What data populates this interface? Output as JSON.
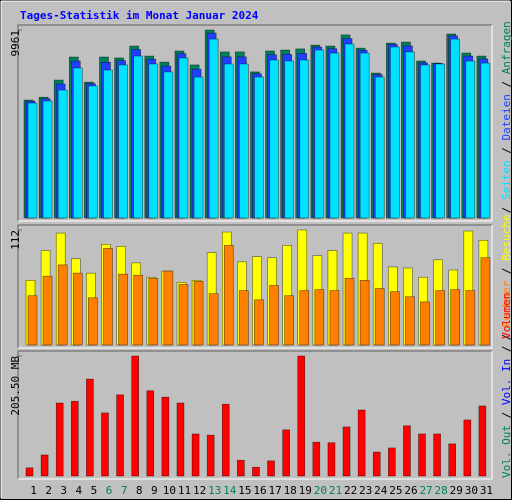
{
  "title": "Tages-Statistik im Monat Januar 2024",
  "legend_separator": " / ",
  "chart_data": [
    {
      "type": "bar",
      "ylim": [
        0,
        9961
      ],
      "yticks": [
        9961
      ],
      "series": [
        {
          "name": "Anfragen",
          "color": "#00805c",
          "values": [
            6250,
            6400,
            7310,
            8530,
            7200,
            8530,
            8480,
            9110,
            8580,
            8260,
            8850,
            8110,
            9961,
            8800,
            8800,
            7740,
            8850,
            8900,
            8960,
            9160,
            9110,
            9700,
            9000,
            7680,
            9270,
            9320,
            8320,
            8210,
            9750,
            8740,
            8580
          ]
        },
        {
          "name": "Dateien",
          "color": "#2040ff",
          "values": [
            6190,
            6320,
            7100,
            8320,
            7120,
            8250,
            8340,
            8930,
            8410,
            8050,
            8710,
            7890,
            9800,
            8540,
            8540,
            7640,
            8650,
            8670,
            8720,
            9060,
            8970,
            9510,
            8890,
            7600,
            9200,
            9120,
            8220,
            8190,
            9650,
            8580,
            8430
          ]
        },
        {
          "name": "Seiten",
          "color": "#00e0ff",
          "values": [
            6090,
            6200,
            6780,
            7950,
            7000,
            7840,
            8110,
            8580,
            8160,
            7740,
            8480,
            7470,
            9480,
            8160,
            8160,
            7470,
            8370,
            8320,
            8370,
            8900,
            8740,
            9220,
            8740,
            7470,
            9060,
            8800,
            8110,
            8160,
            9480,
            8320,
            8210
          ]
        }
      ]
    },
    {
      "type": "bar",
      "ylim": [
        0,
        112
      ],
      "yticks": [
        112
      ],
      "series": [
        {
          "name": "Besuche",
          "color": "#ffff00",
          "values": [
            63,
            92,
            109,
            84,
            70,
            98,
            96,
            80,
            66,
            72,
            61,
            63,
            90,
            110,
            81,
            86,
            85,
            97,
            112,
            87,
            92,
            109,
            109,
            99,
            76,
            75,
            66,
            83,
            73,
            111,
            102
          ]
        },
        {
          "name": "Rechner",
          "color": "#ff8000",
          "values": [
            48,
            67,
            78,
            70,
            46,
            94,
            69,
            68,
            65,
            72,
            59,
            62,
            50,
            97,
            53,
            44,
            58,
            48,
            53,
            54,
            53,
            65,
            63,
            55,
            52,
            47,
            42,
            53,
            54,
            53,
            85
          ]
        }
      ]
    },
    {
      "type": "bar",
      "ylim": [
        0,
        205.5
      ],
      "yticks": [
        {
          "value": 205.5,
          "label": "205.50 MB"
        }
      ],
      "categories": [
        "1",
        "2",
        "3",
        "4",
        "5",
        "6",
        "7",
        "8",
        "9",
        "10",
        "11",
        "12",
        "13",
        "14",
        "15",
        "16",
        "17",
        "18",
        "19",
        "20",
        "21",
        "22",
        "23",
        "24",
        "25",
        "26",
        "27",
        "28",
        "29",
        "30",
        "31"
      ],
      "x_label_colors": [
        "#000000",
        "#000000",
        "#000000",
        "#000000",
        "#000000",
        "#00805c",
        "#00805c",
        "#000000",
        "#000000",
        "#000000",
        "#000000",
        "#000000",
        "#00805c",
        "#00805c",
        "#000000",
        "#000000",
        "#000000",
        "#000000",
        "#000000",
        "#00805c",
        "#00805c",
        "#000000",
        "#000000",
        "#000000",
        "#000000",
        "#000000",
        "#00805c",
        "#00805c",
        "#000000",
        "#000000",
        "#000000"
      ],
      "series": [
        {
          "name": "Volumen",
          "color": "#ff0000",
          "values": [
            14,
            36,
            125,
            128,
            166,
            108,
            139,
            205.5,
            146,
            135,
            125,
            72,
            70,
            123,
            27,
            15,
            26,
            79,
            205.5,
            58,
            57,
            84,
            113,
            41,
            48,
            86,
            72,
            72,
            55,
            96,
            120
          ]
        }
      ],
      "legend_labels": [
        {
          "name": "Vol. In",
          "color": "#0000ff"
        },
        {
          "name": "Vol. Out",
          "color": "#00805c"
        }
      ]
    }
  ]
}
